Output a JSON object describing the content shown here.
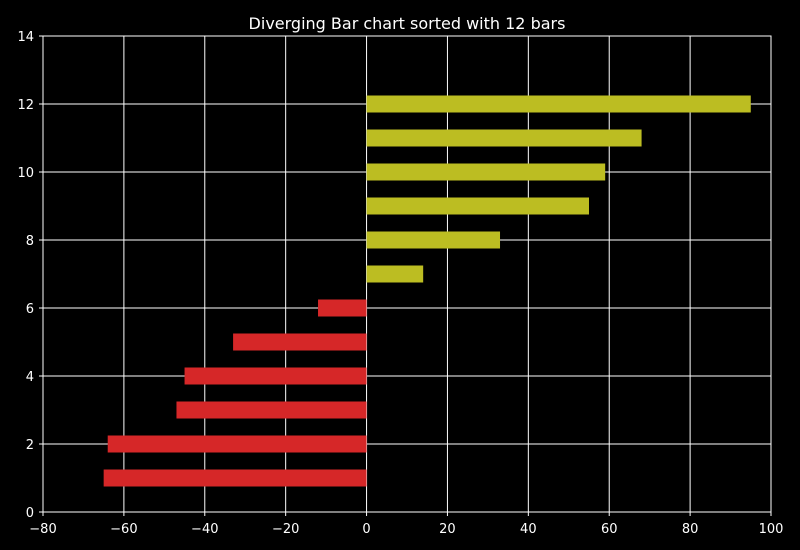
{
  "chart_data": {
    "type": "bar",
    "orientation": "horizontal",
    "title": "Diverging Bar chart sorted with 12 bars",
    "xlabel": "",
    "ylabel": "",
    "xlim": [
      -80,
      100
    ],
    "ylim": [
      0,
      14
    ],
    "xticks": [
      -80,
      -60,
      -40,
      -20,
      0,
      20,
      40,
      60,
      80,
      100
    ],
    "xtick_labels": [
      "−80",
      "−60",
      "−40",
      "−20",
      "0",
      "20",
      "40",
      "60",
      "80",
      "100"
    ],
    "yticks": [
      0,
      2,
      4,
      6,
      8,
      10,
      12,
      14
    ],
    "ytick_labels": [
      "0",
      "2",
      "4",
      "6",
      "8",
      "10",
      "12",
      "14"
    ],
    "grid": true,
    "positions": [
      1,
      2,
      3,
      4,
      5,
      6,
      7,
      8,
      9,
      10,
      11,
      12
    ],
    "values": [
      -65,
      -64,
      -47,
      -45,
      -33,
      -12,
      14,
      33,
      55,
      59,
      68,
      95
    ],
    "colors": {
      "negative": "#d62728",
      "positive": "#bcbd22",
      "background": "#000000",
      "grid": "#ffffff",
      "text": "#ffffff"
    }
  }
}
